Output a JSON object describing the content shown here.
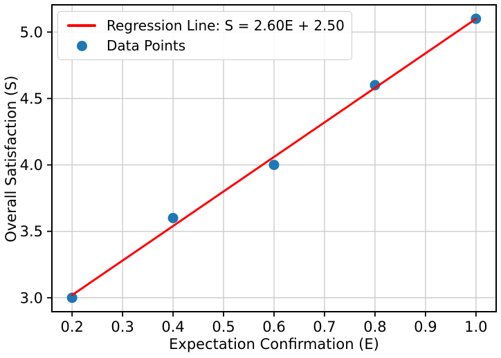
{
  "figure": {
    "background": "#ffffff",
    "text_color": "#000000",
    "spine_color": "#000000",
    "grid_color": "#c8c8c8",
    "tick_color": "#000000"
  },
  "chart_data": {
    "type": "scatter",
    "title": "",
    "xlabel": "Expectation Confirmation (E)",
    "ylabel": "Overall Satisfaction (S)",
    "xlim": [
      0.16,
      1.04
    ],
    "ylim": [
      2.895,
      5.205
    ],
    "grid": true,
    "legend_position": "upper left",
    "x_ticks": [
      {
        "v": 0.2,
        "label": "0.2"
      },
      {
        "v": 0.3,
        "label": "0.3"
      },
      {
        "v": 0.4,
        "label": "0.4"
      },
      {
        "v": 0.5,
        "label": "0.5"
      },
      {
        "v": 0.6,
        "label": "0.6"
      },
      {
        "v": 0.7,
        "label": "0.7"
      },
      {
        "v": 0.8,
        "label": "0.8"
      },
      {
        "v": 0.9,
        "label": "0.9"
      },
      {
        "v": 1.0,
        "label": "1.0"
      }
    ],
    "y_ticks": [
      {
        "v": 3.0,
        "label": "3.0"
      },
      {
        "v": 3.5,
        "label": "3.5"
      },
      {
        "v": 4.0,
        "label": "4.0"
      },
      {
        "v": 4.5,
        "label": "4.5"
      },
      {
        "v": 5.0,
        "label": "5.0"
      }
    ],
    "series": [
      {
        "name": "Regression Line: S = 2.60E + 2.50",
        "type": "line",
        "color": "#ff0000",
        "equation": {
          "slope": 2.6,
          "intercept": 2.5
        },
        "x": [
          0.2,
          1.0
        ],
        "y": [
          3.02,
          5.1
        ]
      },
      {
        "name": "Data Points",
        "type": "scatter",
        "color": "#1f77b4",
        "x": [
          0.2,
          0.4,
          0.6,
          0.8,
          1.0
        ],
        "y": [
          3.0,
          3.6,
          4.0,
          4.6,
          5.1
        ]
      }
    ]
  }
}
